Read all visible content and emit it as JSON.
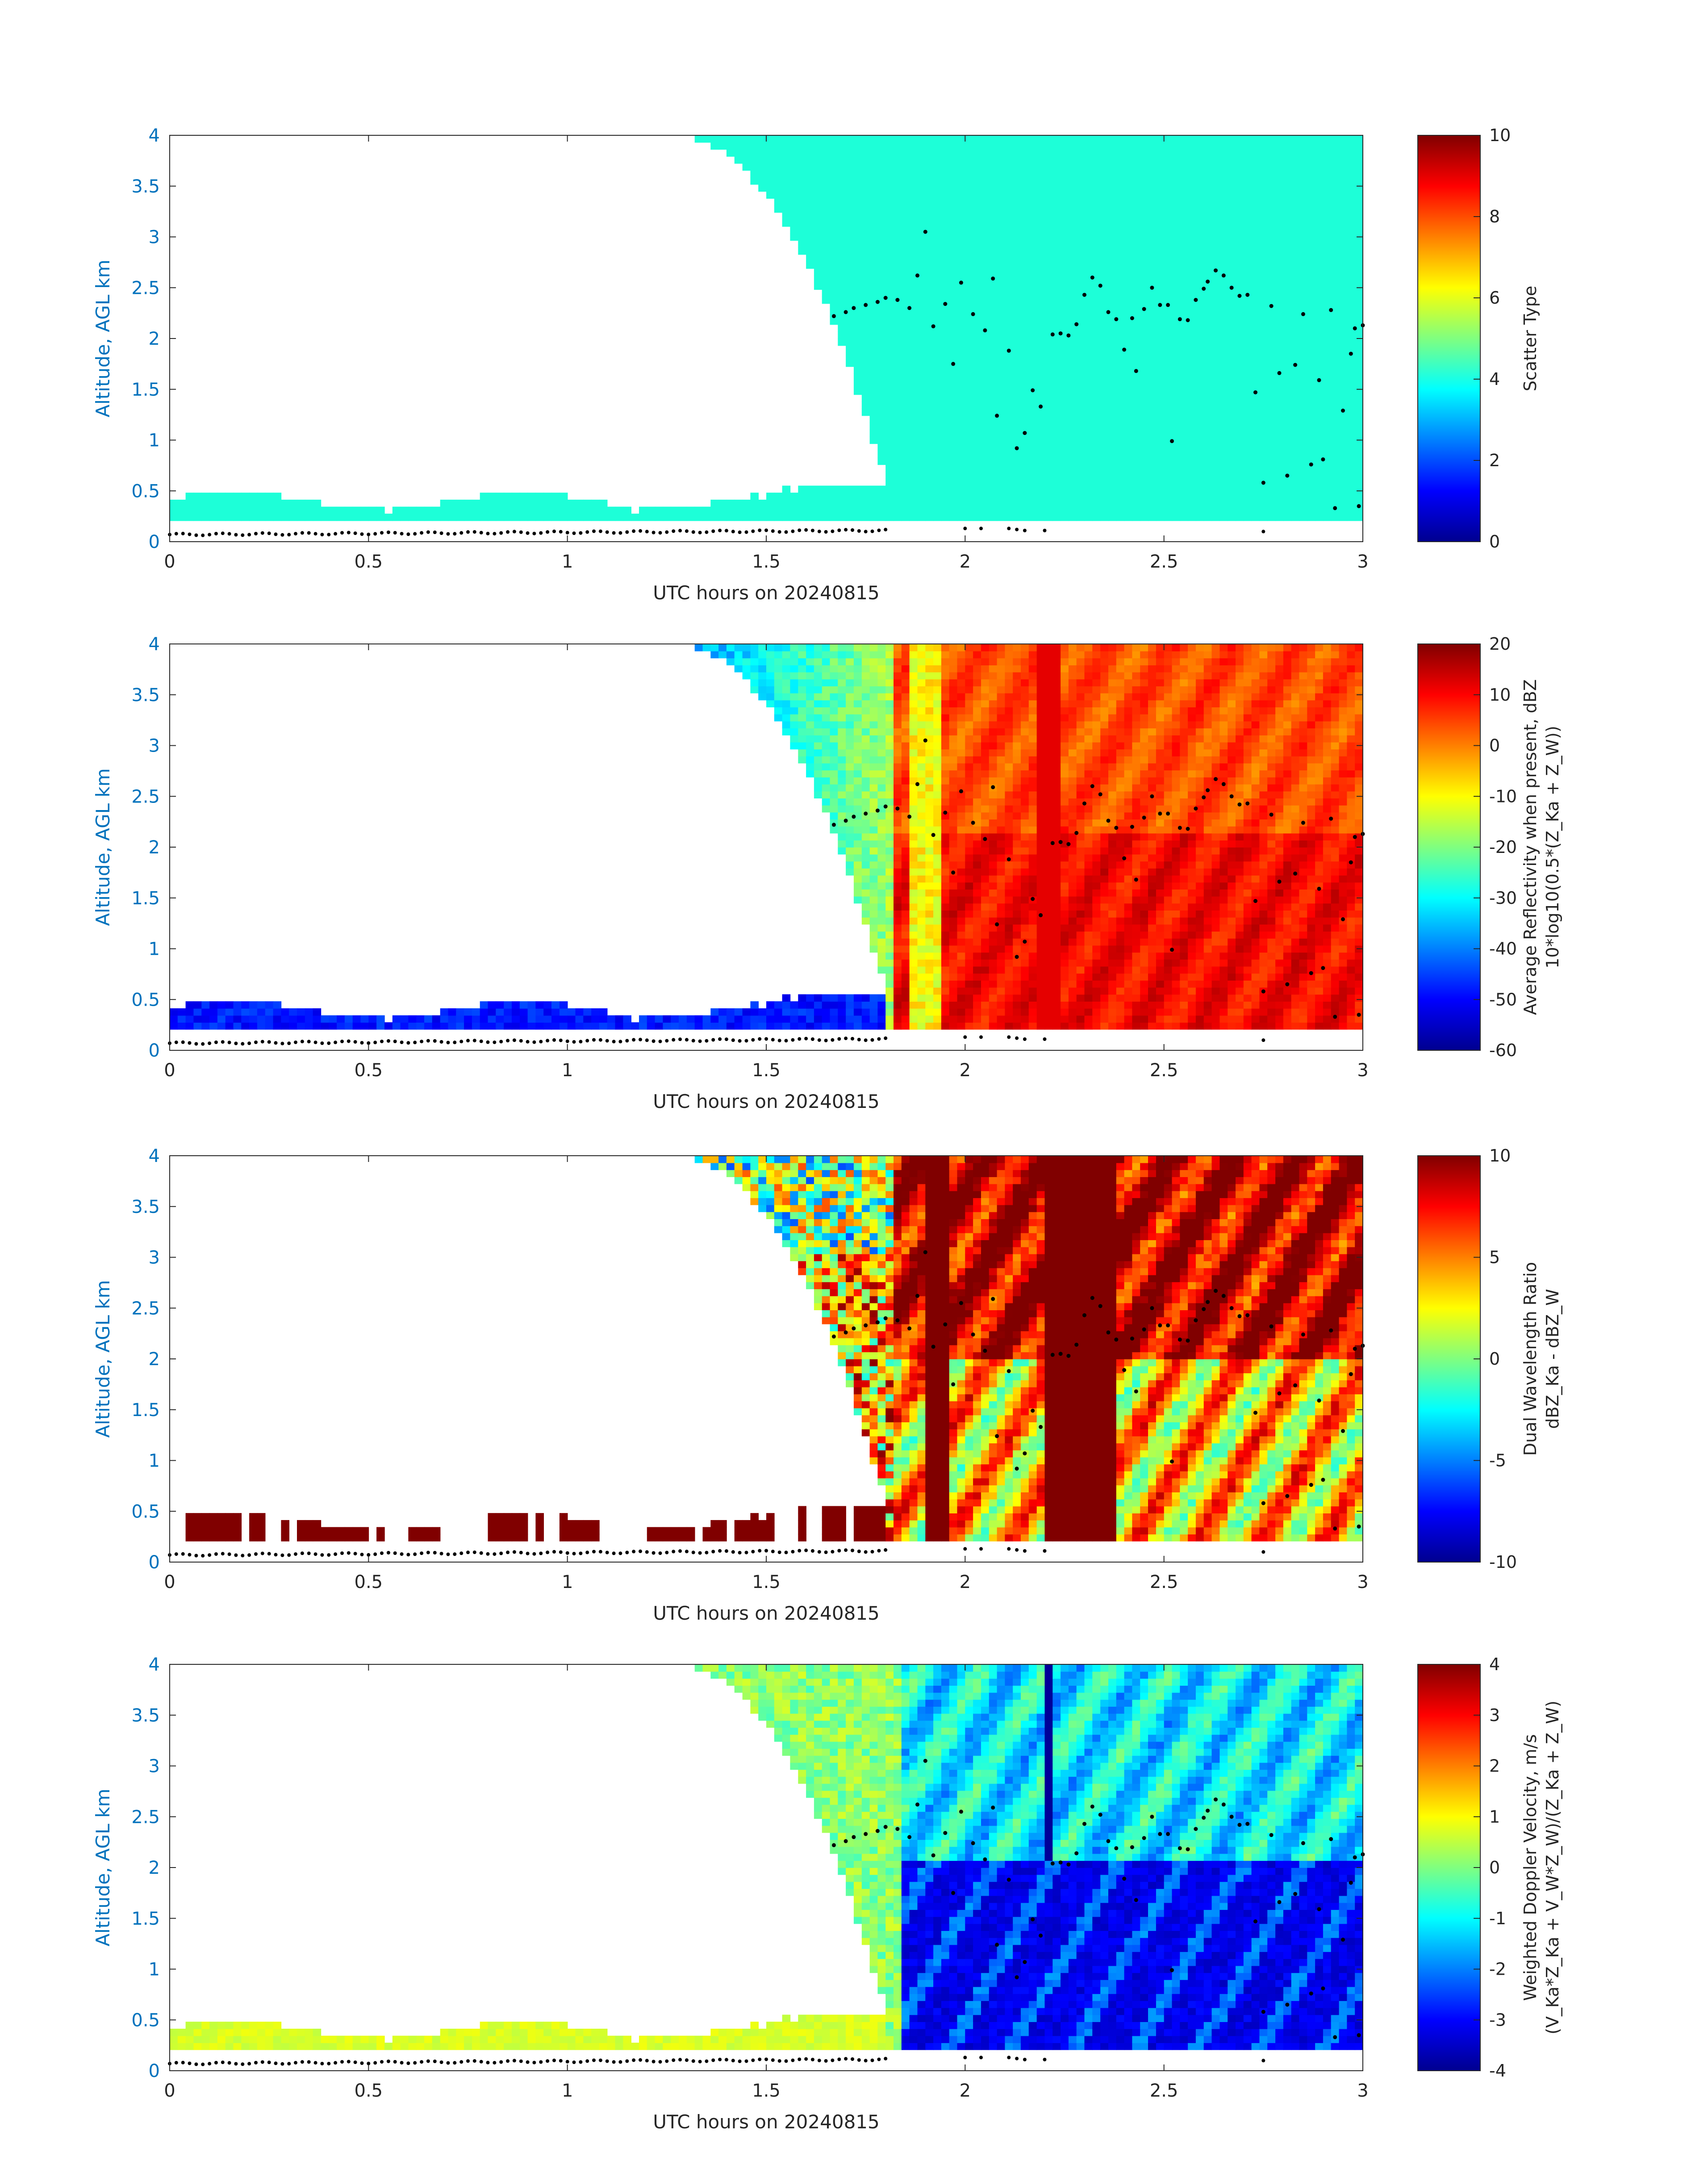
{
  "figure": {
    "xlabel": "UTC hours on 20240815",
    "ylabel": "Altitude, AGL km"
  },
  "colors": {
    "axis_y": "#0072bd",
    "axis_x": "#262626",
    "scatter_type_fill": "#1dffd8",
    "ground_dots": "#000000"
  },
  "chart_data": [
    {
      "type": "heatmap",
      "field": "scatter_type",
      "xlabel": "UTC hours on 20240815",
      "ylabel": "Altitude, AGL km",
      "xlim": [
        0,
        3
      ],
      "ylim": [
        0,
        4
      ],
      "xticks": [
        "0",
        "0.5",
        "1",
        "1.5",
        "2",
        "2.5",
        "3"
      ],
      "yticks": [
        "0",
        "0.5",
        "1",
        "1.5",
        "2",
        "2.5",
        "3",
        "3.5",
        "4"
      ],
      "colorbar": {
        "label": "Scatter Type",
        "label2": "",
        "range": [
          0,
          10
        ],
        "ticks": [
          "0",
          "2",
          "4",
          "6",
          "8",
          "10"
        ],
        "colormap": "jet"
      },
      "dominant_value": 4
    },
    {
      "type": "heatmap",
      "field": "average_reflectivity",
      "xlabel": "UTC hours on 20240815",
      "ylabel": "Altitude, AGL km",
      "xlim": [
        0,
        3
      ],
      "ylim": [
        0,
        4
      ],
      "xticks": [
        "0",
        "0.5",
        "1",
        "1.5",
        "2",
        "2.5",
        "3"
      ],
      "yticks": [
        "0",
        "0.5",
        "1",
        "1.5",
        "2",
        "2.5",
        "3",
        "3.5",
        "4"
      ],
      "colorbar": {
        "label": "Average Reflectivity when present, dBZ",
        "label2": "10*log10(0.5*(Z_Ka + Z_W))",
        "range": [
          -60,
          20
        ],
        "ticks": [
          "-60",
          "-50",
          "-40",
          "-30",
          "-20",
          "-10",
          "0",
          "10",
          "20"
        ],
        "colormap": "jet"
      }
    },
    {
      "type": "heatmap",
      "field": "dual_wavelength_ratio",
      "xlabel": "UTC hours on 20240815",
      "ylabel": "Altitude, AGL km",
      "xlim": [
        0,
        3
      ],
      "ylim": [
        0,
        4
      ],
      "xticks": [
        "0",
        "0.5",
        "1",
        "1.5",
        "2",
        "2.5",
        "3"
      ],
      "yticks": [
        "0",
        "0.5",
        "1",
        "1.5",
        "2",
        "2.5",
        "3",
        "3.5",
        "4"
      ],
      "colorbar": {
        "label": "Dual Wavelength Ratio",
        "label2": "dBZ_Ka - dBZ_W",
        "range": [
          -10,
          10
        ],
        "ticks": [
          "-10",
          "-5",
          "0",
          "5",
          "10"
        ],
        "colormap": "jet"
      }
    },
    {
      "type": "heatmap",
      "field": "weighted_doppler_velocity",
      "xlabel": "UTC hours on 20240815",
      "ylabel": "Altitude, AGL km",
      "xlim": [
        0,
        3
      ],
      "ylim": [
        0,
        4
      ],
      "xticks": [
        "0",
        "0.5",
        "1",
        "1.5",
        "2",
        "2.5",
        "3"
      ],
      "yticks": [
        "0",
        "0.5",
        "1",
        "1.5",
        "2",
        "2.5",
        "3",
        "3.5",
        "4"
      ],
      "colorbar": {
        "label": "Weighted Doppler Velocity, m/s",
        "label2": "(V_Ka*Z_Ka + V_W*Z_W)/(Z_Ka + Z_W)",
        "range": [
          -4,
          4
        ],
        "ticks": [
          "-4",
          "-3",
          "-2",
          "-1",
          "0",
          "1",
          "2",
          "3",
          "4"
        ],
        "colormap": "jet"
      }
    }
  ],
  "overlay": {
    "cloud_top_dots": [
      [
        1.67,
        2.22
      ],
      [
        1.7,
        2.26
      ],
      [
        1.72,
        2.3
      ],
      [
        1.75,
        2.33
      ],
      [
        1.78,
        2.36
      ],
      [
        1.8,
        2.4
      ],
      [
        1.83,
        2.38
      ],
      [
        1.86,
        2.3
      ],
      [
        1.88,
        2.62
      ],
      [
        1.9,
        3.05
      ],
      [
        1.92,
        2.12
      ],
      [
        1.95,
        2.34
      ],
      [
        1.97,
        1.75
      ],
      [
        1.99,
        2.55
      ],
      [
        2.02,
        2.24
      ],
      [
        2.05,
        2.08
      ],
      [
        2.07,
        2.59
      ],
      [
        2.08,
        1.24
      ],
      [
        2.11,
        1.88
      ],
      [
        2.13,
        0.92
      ],
      [
        2.15,
        1.07
      ],
      [
        2.17,
        1.49
      ],
      [
        2.19,
        1.33
      ],
      [
        2.22,
        2.04
      ],
      [
        2.24,
        2.05
      ],
      [
        2.26,
        2.03
      ],
      [
        2.28,
        2.14
      ],
      [
        2.3,
        2.43
      ],
      [
        2.32,
        2.6
      ],
      [
        2.34,
        2.52
      ],
      [
        2.36,
        2.26
      ],
      [
        2.38,
        2.19
      ],
      [
        2.4,
        1.89
      ],
      [
        2.42,
        2.2
      ],
      [
        2.43,
        1.68
      ],
      [
        2.45,
        2.29
      ],
      [
        2.47,
        2.5
      ],
      [
        2.49,
        2.33
      ],
      [
        2.51,
        2.33
      ],
      [
        2.52,
        0.99
      ],
      [
        2.54,
        2.19
      ],
      [
        2.56,
        2.18
      ],
      [
        2.58,
        2.38
      ],
      [
        2.6,
        2.49
      ],
      [
        2.61,
        2.56
      ],
      [
        2.63,
        2.67
      ],
      [
        2.65,
        2.62
      ],
      [
        2.67,
        2.5
      ],
      [
        2.69,
        2.42
      ],
      [
        2.71,
        2.43
      ],
      [
        2.73,
        1.47
      ],
      [
        2.75,
        0.58
      ],
      [
        2.77,
        2.32
      ],
      [
        2.79,
        1.66
      ],
      [
        2.81,
        0.65
      ],
      [
        2.83,
        1.74
      ],
      [
        2.85,
        2.24
      ],
      [
        2.87,
        0.76
      ],
      [
        2.89,
        1.59
      ],
      [
        2.9,
        0.81
      ],
      [
        2.92,
        2.28
      ],
      [
        2.93,
        0.33
      ],
      [
        2.95,
        1.29
      ],
      [
        2.97,
        1.85
      ],
      [
        2.98,
        2.1
      ],
      [
        2.99,
        0.35
      ],
      [
        3.0,
        2.13
      ]
    ],
    "surface_dots": [
      [
        2.0,
        0.13
      ],
      [
        2.04,
        0.13
      ],
      [
        2.11,
        0.13
      ],
      [
        2.13,
        0.12
      ],
      [
        2.15,
        0.11
      ],
      [
        2.2,
        0.11
      ],
      [
        2.75,
        0.1
      ]
    ]
  }
}
